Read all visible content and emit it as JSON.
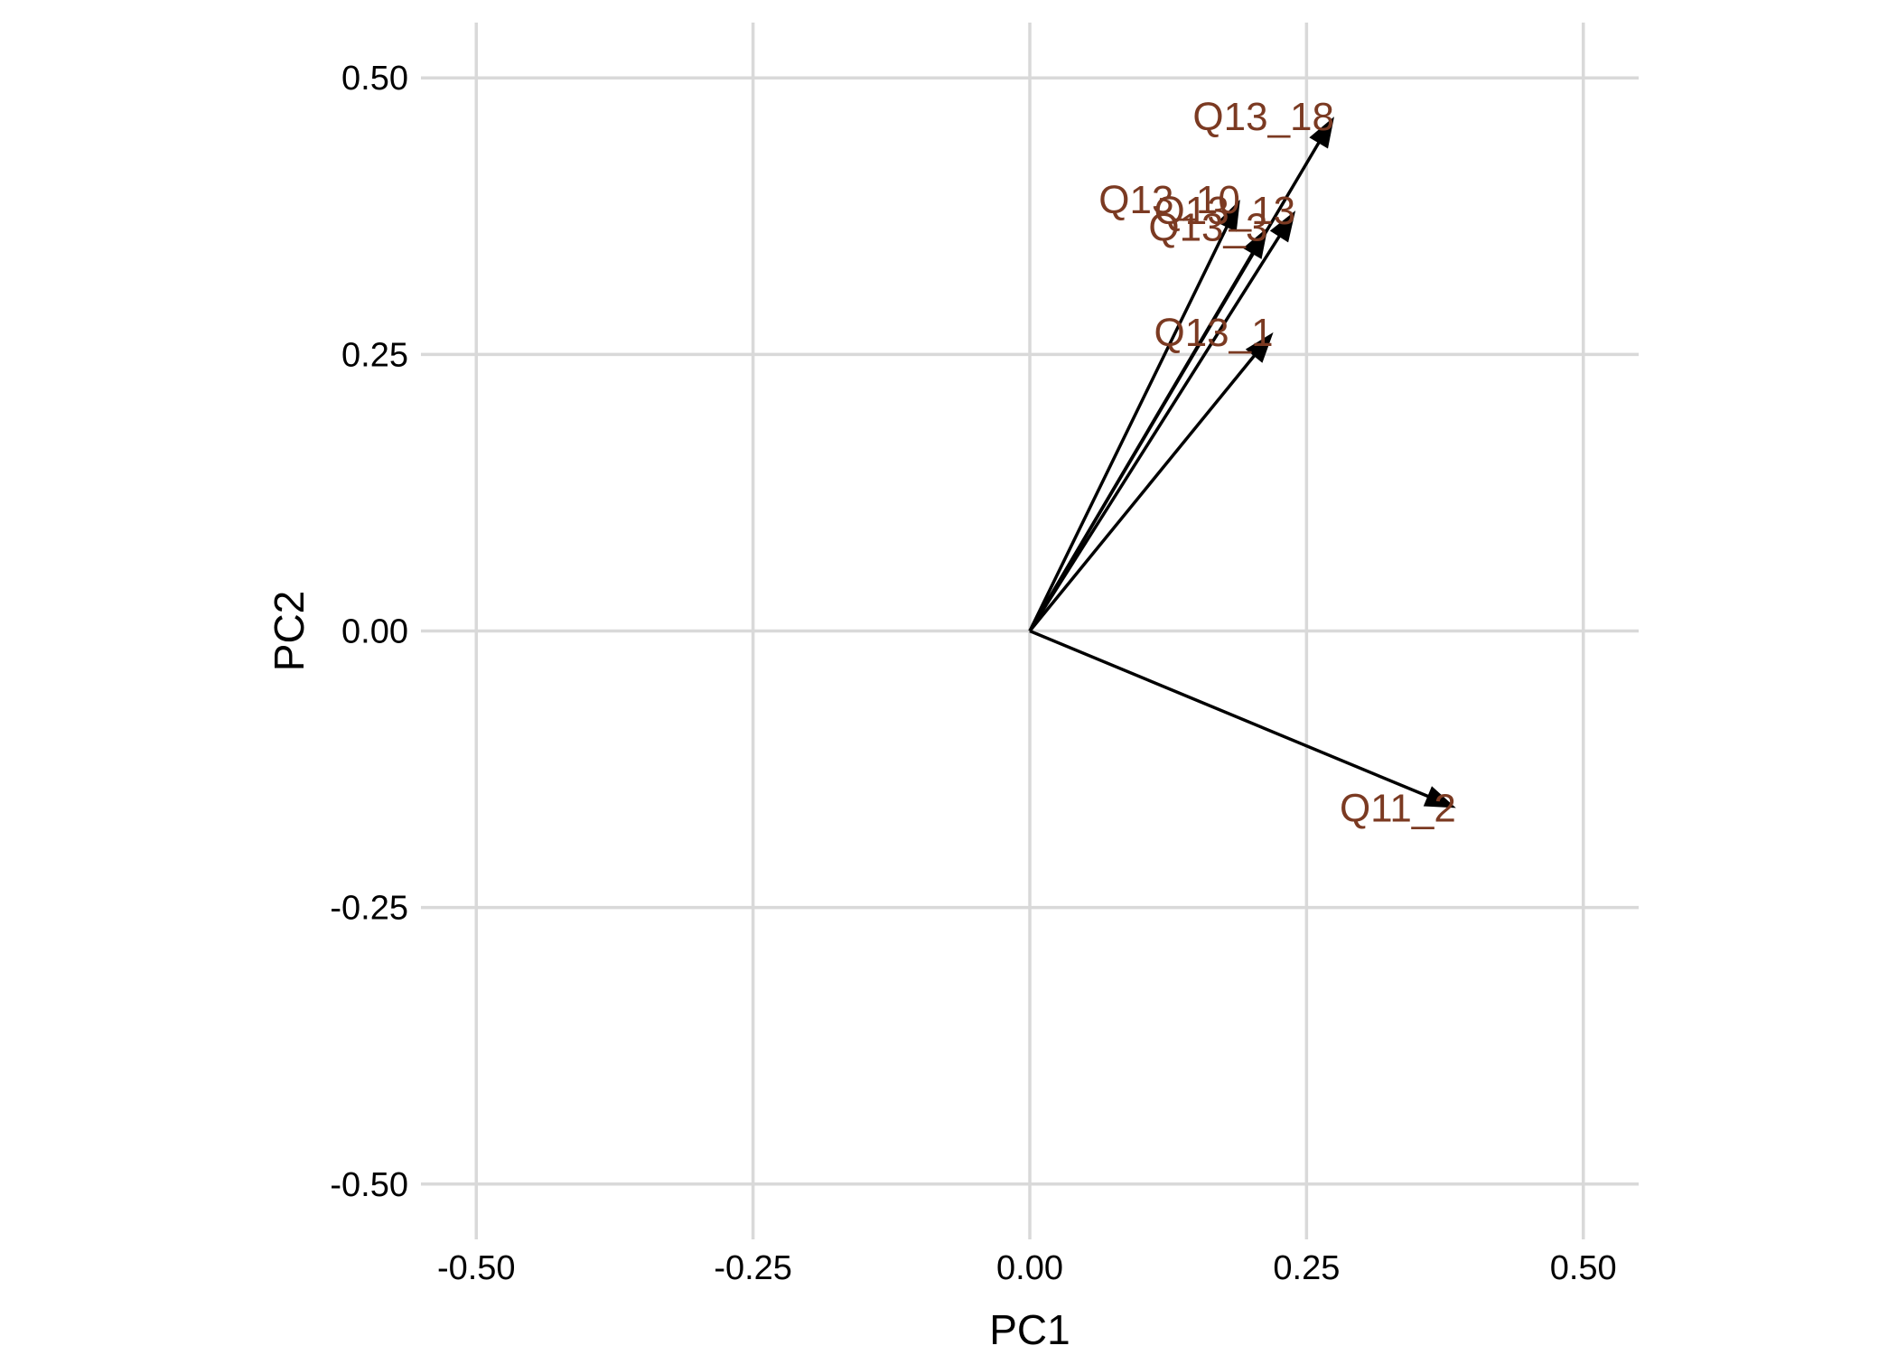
{
  "chart_data": {
    "type": "scatter",
    "subtype": "pca-loadings-biplot",
    "title": "",
    "xlabel": "PC1",
    "ylabel": "PC2",
    "xlim": [
      -0.55,
      0.55
    ],
    "ylim": [
      -0.55,
      0.55
    ],
    "x_ticks": [
      -0.5,
      -0.25,
      0,
      0.25,
      0.5
    ],
    "y_ticks": [
      -0.5,
      -0.25,
      0,
      0.25,
      0.5
    ],
    "x_tick_labels": [
      "-0.50",
      "-0.25",
      "0.00",
      "0.25",
      "0.50"
    ],
    "y_tick_labels": [
      "-0.50",
      "-0.25",
      "0.00",
      "0.25",
      "0.50"
    ],
    "grid": true,
    "legend": "none",
    "colors": {
      "arrow": "#000000",
      "label": "#7b3a22",
      "grid": "#d9d9d9"
    },
    "vectors": [
      {
        "label": "Q13_18",
        "x": 0.275,
        "y": 0.465
      },
      {
        "label": "Q13_10",
        "x": 0.19,
        "y": 0.39
      },
      {
        "label": "Q13_13",
        "x": 0.24,
        "y": 0.38
      },
      {
        "label": "Q13_3",
        "x": 0.215,
        "y": 0.365
      },
      {
        "label": "Q13_1",
        "x": 0.22,
        "y": 0.27
      },
      {
        "label": "Q11_2",
        "x": 0.385,
        "y": -0.16
      }
    ]
  }
}
